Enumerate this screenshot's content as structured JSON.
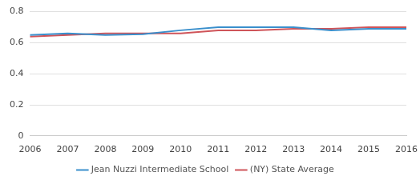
{
  "chart_data": {
    "type": "line",
    "categories": [
      "2006",
      "2007",
      "2008",
      "2009",
      "2010",
      "2011",
      "2012",
      "2013",
      "2014",
      "2015",
      "2016"
    ],
    "series": [
      {
        "name": "Jean Nuzzi Intermediate School",
        "color": "#3a8fcc",
        "values": [
          0.65,
          0.66,
          0.65,
          0.655,
          0.68,
          0.7,
          0.7,
          0.7,
          0.68,
          0.69,
          0.69
        ]
      },
      {
        "name": "(NY) State Average",
        "color": "#cf5459",
        "values": [
          0.64,
          0.65,
          0.66,
          0.66,
          0.66,
          0.68,
          0.68,
          0.69,
          0.69,
          0.7,
          0.7
        ]
      }
    ],
    "ylim": [
      0,
      0.8
    ],
    "yticks": [
      0,
      0.2,
      0.4,
      0.6,
      0.8
    ],
    "grid": true,
    "legend": "bottom"
  }
}
